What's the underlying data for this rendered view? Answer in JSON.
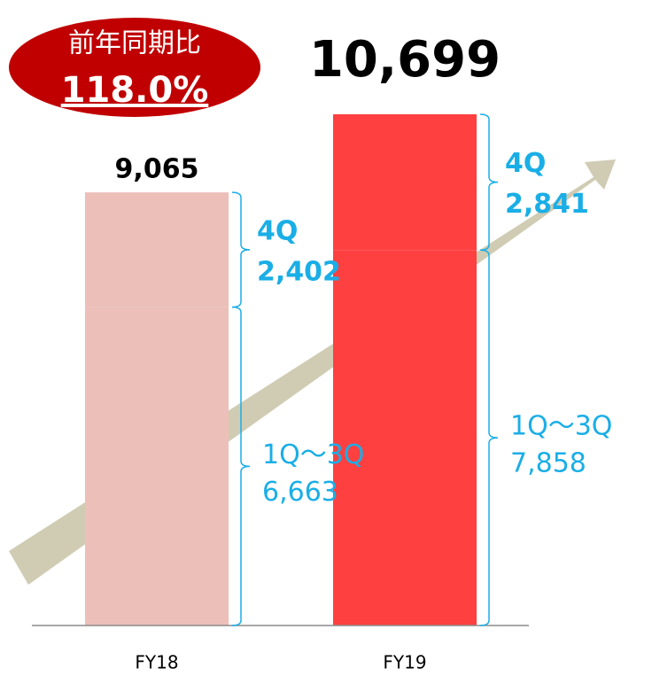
{
  "chart_data": {
    "type": "bar",
    "stacked": true,
    "categories": [
      "FY18",
      "FY19"
    ],
    "colors": [
      "#ecbfb9",
      "#ff4040"
    ],
    "totals": [
      9065,
      10699
    ],
    "total_labels": [
      "9,065",
      "10,699"
    ],
    "series": [
      {
        "name": "1Q～3Q",
        "color": "#1aaee6",
        "values": [
          6663,
          7858
        ],
        "value_labels": [
          "6,663",
          "7,858"
        ]
      },
      {
        "name": "4Q",
        "color": "#1aaee6",
        "values": [
          2402,
          2841
        ],
        "value_labels": [
          "2,402",
          "2,841"
        ]
      }
    ],
    "annotation": {
      "title": "前年同期比",
      "value": 118.0,
      "label": "118.0%"
    }
  }
}
